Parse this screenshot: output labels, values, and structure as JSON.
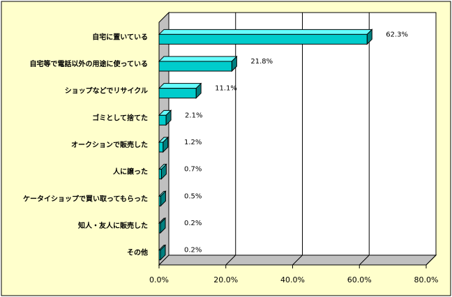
{
  "chart_data": {
    "type": "bar",
    "orientation": "horizontal",
    "three_d": true,
    "categories": [
      "自宅に置いている",
      "自宅等で電話以外の用途に使っている",
      "ショップなどでリサイクル",
      "ゴミとして捨てた",
      "オークションで販売した",
      "人に譲った",
      "ケータイショップで買い取ってもらった",
      "知人・友人に販売した",
      "その他"
    ],
    "values": [
      62.3,
      21.8,
      11.1,
      2.1,
      1.2,
      0.7,
      0.5,
      0.2,
      0.2
    ],
    "value_labels": [
      "62.3%",
      "21.8%",
      "11.1%",
      "2.1%",
      "1.2%",
      "0.7%",
      "0.5%",
      "0.2%",
      "0.2%"
    ],
    "xlim": [
      0,
      80
    ],
    "xticks": [
      0,
      20,
      40,
      60,
      80
    ],
    "xtick_labels": [
      "0.0%",
      "20.0%",
      "40.0%",
      "60.0%",
      "80.0%"
    ],
    "grid": true,
    "colors": {
      "page_background": "#ffffcc",
      "plot_wall": "#ffffff",
      "floor": "#c0c0c0",
      "bar_front": "#00cccc",
      "bar_top": "#66ffff",
      "bar_side": "#008080",
      "outline": "#000000"
    }
  }
}
